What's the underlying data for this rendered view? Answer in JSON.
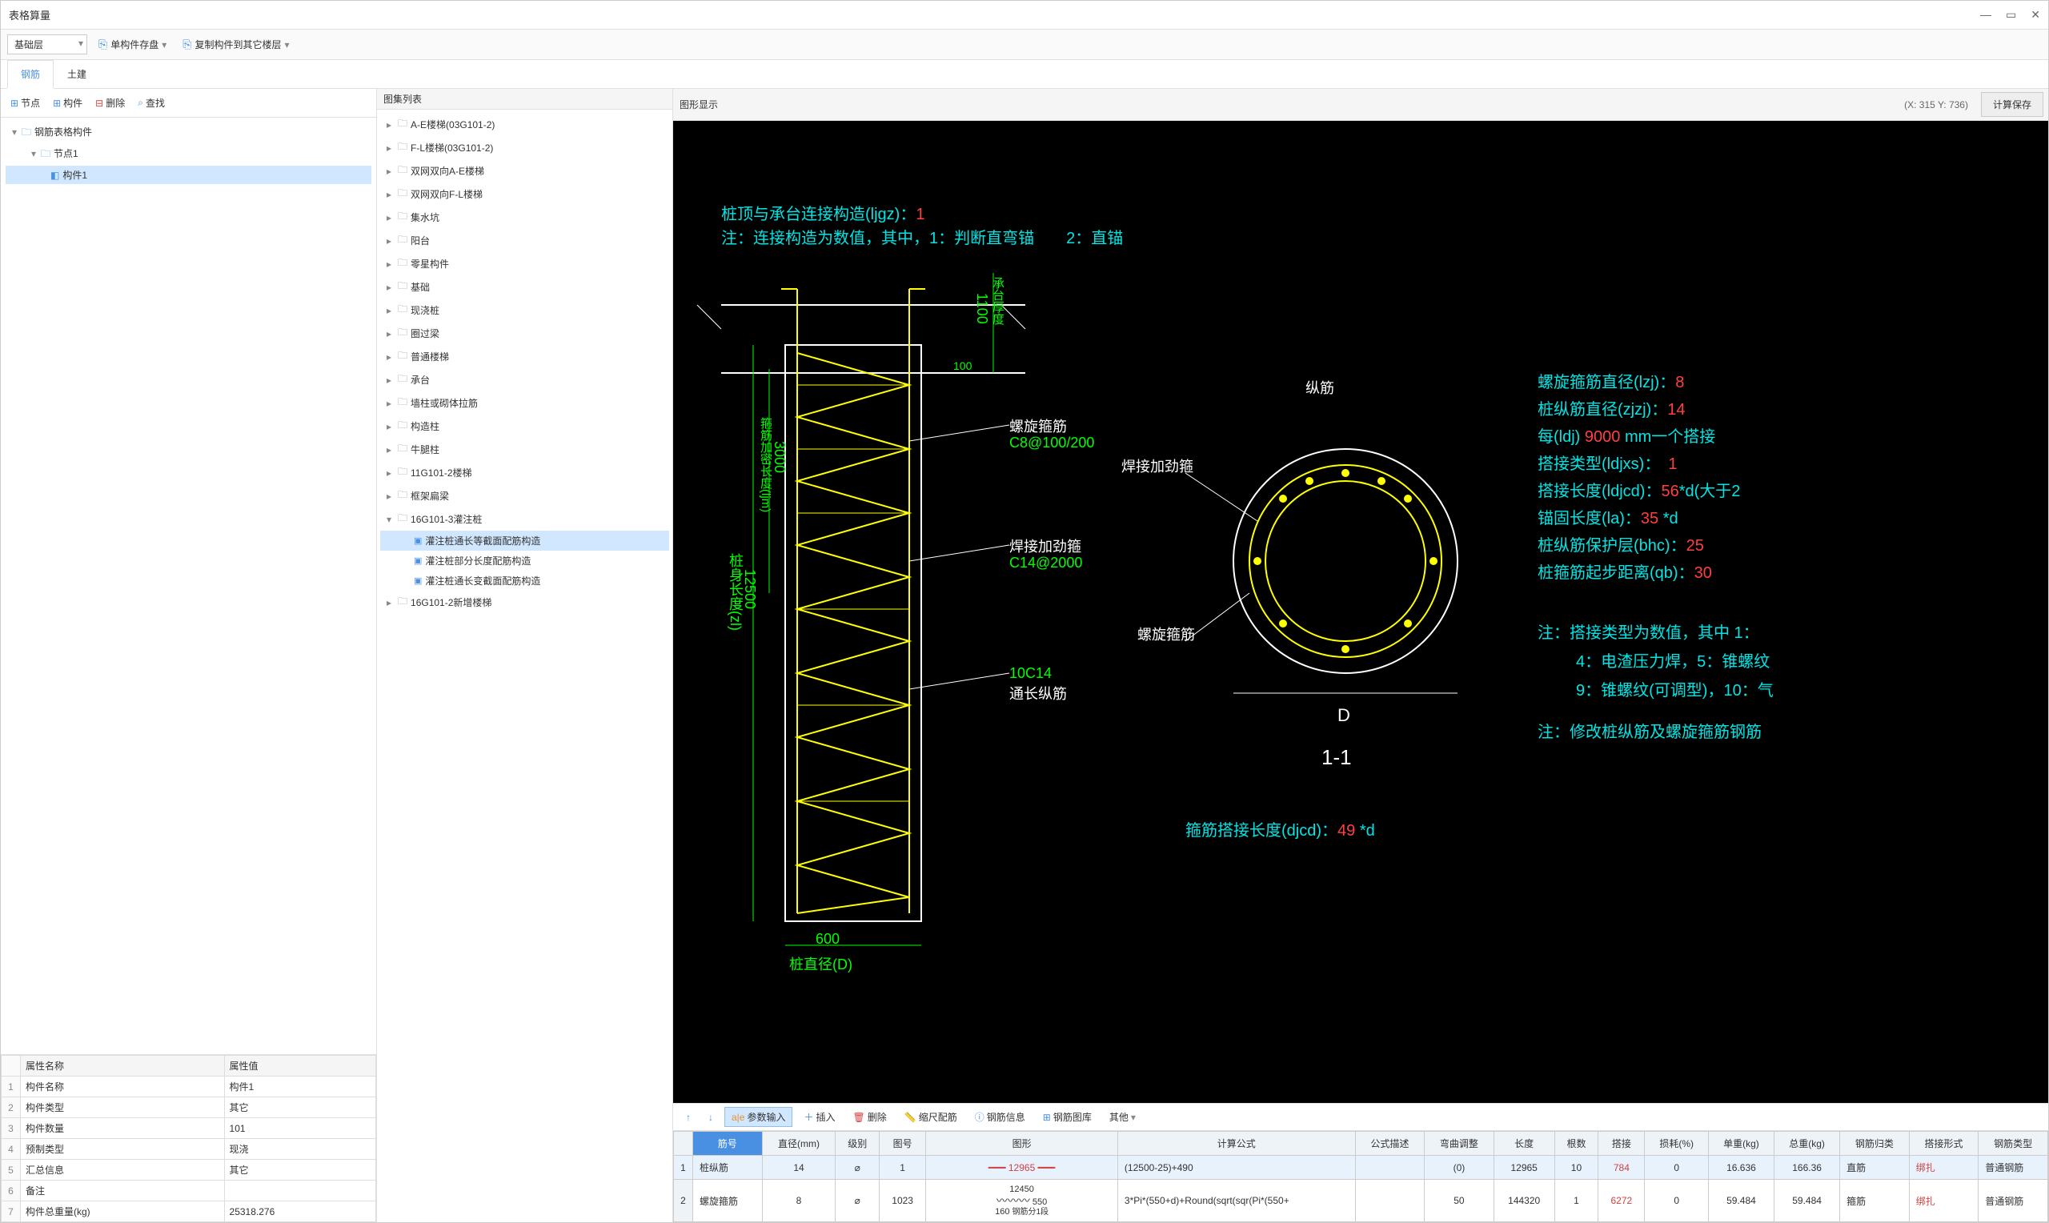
{
  "window": {
    "title": "表格算量"
  },
  "toolbar": {
    "layer": "基础层",
    "save": "单构件存盘",
    "copy": "复制构件到其它楼层"
  },
  "tabs": {
    "rebar": "钢筋",
    "civil": "土建"
  },
  "leftToolbar": {
    "node": "节点",
    "component": "构件",
    "delete": "删除",
    "find": "查找"
  },
  "leftTree": {
    "root": "钢筋表格构件",
    "n1": "节点1",
    "c1": "构件1"
  },
  "props": {
    "h1": "属性名称",
    "h2": "属性值",
    "rows": [
      {
        "n": "构件名称",
        "v": "构件1"
      },
      {
        "n": "构件类型",
        "v": "其它"
      },
      {
        "n": "构件数量",
        "v": "101"
      },
      {
        "n": "预制类型",
        "v": "现浇"
      },
      {
        "n": "汇总信息",
        "v": "其它"
      },
      {
        "n": "备注",
        "v": ""
      },
      {
        "n": "构件总重量(kg)",
        "v": "25318.276"
      }
    ]
  },
  "middle": {
    "header": "图集列表",
    "items": [
      {
        "d": 1,
        "t": "A-E楼梯(03G101-2)",
        "exp": "▸",
        "ic": "folder"
      },
      {
        "d": 1,
        "t": "F-L楼梯(03G101-2)",
        "exp": "▸",
        "ic": "folder"
      },
      {
        "d": 1,
        "t": "双网双向A-E楼梯",
        "exp": "▸",
        "ic": "folder"
      },
      {
        "d": 1,
        "t": "双网双向F-L楼梯",
        "exp": "▸",
        "ic": "folder"
      },
      {
        "d": 1,
        "t": "集水坑",
        "exp": "▸",
        "ic": "folder"
      },
      {
        "d": 1,
        "t": "阳台",
        "exp": "▸",
        "ic": "folder"
      },
      {
        "d": 1,
        "t": "零星构件",
        "exp": "▸",
        "ic": "folder"
      },
      {
        "d": 1,
        "t": "基础",
        "exp": "▸",
        "ic": "folder"
      },
      {
        "d": 1,
        "t": "现浇桩",
        "exp": "▸",
        "ic": "folder"
      },
      {
        "d": 1,
        "t": "圈过梁",
        "exp": "▸",
        "ic": "folder"
      },
      {
        "d": 1,
        "t": "普通楼梯",
        "exp": "▸",
        "ic": "folder"
      },
      {
        "d": 1,
        "t": "承台",
        "exp": "▸",
        "ic": "folder"
      },
      {
        "d": 1,
        "t": "墙柱或砌体拉筋",
        "exp": "▸",
        "ic": "folder"
      },
      {
        "d": 1,
        "t": "构造柱",
        "exp": "▸",
        "ic": "folder"
      },
      {
        "d": 1,
        "t": "牛腿柱",
        "exp": "▸",
        "ic": "folder"
      },
      {
        "d": 1,
        "t": "11G101-2楼梯",
        "exp": "▸",
        "ic": "folder"
      },
      {
        "d": 1,
        "t": "框架扁梁",
        "exp": "▸",
        "ic": "folder"
      },
      {
        "d": 1,
        "t": "16G101-3灌注桩",
        "exp": "▾",
        "ic": "folder"
      },
      {
        "d": 2,
        "t": "灌注桩通长等截面配筋构造",
        "ic": "item",
        "sel": true
      },
      {
        "d": 2,
        "t": "灌注桩部分长度配筋构造",
        "ic": "item"
      },
      {
        "d": 2,
        "t": "灌注桩通长变截面配筋构造",
        "ic": "item"
      },
      {
        "d": 1,
        "t": "16G101-2新增楼梯",
        "exp": "▸",
        "ic": "folder"
      }
    ]
  },
  "viewer": {
    "header": "图形显示",
    "coords": "(X: 315 Y: 736)",
    "calcBtn": "计算保存",
    "text": {
      "title1": "桩顶与承台连接构造(ljgz)：",
      "title1v": "1",
      "note1": "注：连接构造为数值，其中，1：判断直弯锚　　2：直锚",
      "spiral": "螺旋箍筋",
      "spiralSpec": "C8@100/200",
      "weld": "焊接加劲箍",
      "weldSpec": "C14@2000",
      "longi": "10C14",
      "longiLabel": "通长纵筋",
      "pileLen": "桩身长度(zl)",
      "pileLenV": "12500",
      "denseLen": "箍筋加密长度(ljm)",
      "denseLenV": "3000",
      "capH": "1100",
      "capHL": "承台厚度",
      "hundred": "100",
      "diam": "600",
      "diamL": "桩直径(D)",
      "sec": "纵筋",
      "secWeld": "焊接加劲箍",
      "secSpiral": "螺旋箍筋",
      "D": "D",
      "secNum": "1-1",
      "lapLen": "箍筋搭接长度(djcd)：",
      "lapLenV": "49",
      "lapLenU": " *d",
      "p1a": "螺旋箍筋直径(lzj)：",
      "p1b": "8",
      "p2a": "桩纵筋直径(zjzj)：",
      "p2b": "14",
      "p3a": "每(ldj) ",
      "p3b": "9000",
      "p3c": " mm一个搭接",
      "p4a": "搭接类型(ldjxs)：　",
      "p4b": "1",
      "p5a": "搭接长度(ldjcd)：",
      "p5b": "56",
      "p5c": "*d(大于2",
      "p6a": "锚固长度(la)：",
      "p6b": "35",
      "p6c": " *d",
      "p7a": "桩纵筋保护层(bhc)：",
      "p7b": "25",
      "p8a": "桩箍筋起步距离(qb)：",
      "p8b": "30",
      "n1": "注：搭接类型为数值，其中 1：",
      "n2": "4：电渣压力焊，5：锥螺纹",
      "n3": "9：锥螺纹(可调型)，10：气",
      "n4": "注：修改桩纵筋及螺旋箍筋钢筋"
    }
  },
  "bottom": {
    "toolbar": {
      "param": "参数输入",
      "insert": "插入",
      "delete": "删除",
      "scale": "缩尺配筋",
      "info": "钢筋信息",
      "lib": "钢筋图库",
      "other": "其他"
    },
    "cols": [
      "筋号",
      "直径(mm)",
      "级别",
      "图号",
      "图形",
      "计算公式",
      "公式描述",
      "弯曲调整",
      "长度",
      "根数",
      "搭接",
      "损耗(%)",
      "单重(kg)",
      "总重(kg)",
      "钢筋归类",
      "搭接形式",
      "钢筋类型"
    ],
    "rows": [
      {
        "n": "1",
        "name": "桩纵筋",
        "d": "14",
        "g": "⌀",
        "fig": "1",
        "shape": "12965",
        "formula": "(12500-25)+490",
        "desc": "",
        "bend": "(0)",
        "len": "12965",
        "cnt": "10",
        "lap": "784",
        "loss": "0",
        "uw": "16.636",
        "tw": "166.36",
        "cat": "直筋",
        "form": "绑扎",
        "type": "普通钢筋",
        "sel": true
      },
      {
        "n": "2",
        "name": "螺旋箍筋",
        "d": "8",
        "g": "⌀",
        "fig": "1023",
        "shape": "12450 / 550 / 160",
        "formula": "3*Pi*(550+d)+Round(sqrt(sqr(Pi*(550+",
        "desc": "",
        "bend": "50",
        "len": "144320",
        "cnt": "1",
        "lap": "6272",
        "loss": "0",
        "uw": "59.484",
        "tw": "59.484",
        "cat": "箍筋",
        "form": "绑扎",
        "type": "普通钢筋"
      }
    ]
  }
}
